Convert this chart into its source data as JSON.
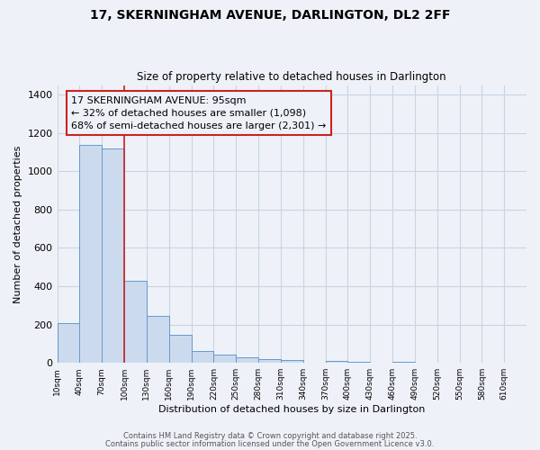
{
  "title_line1": "17, SKERNINGHAM AVENUE, DARLINGTON, DL2 2FF",
  "title_line2": "Size of property relative to detached houses in Darlington",
  "xlabel": "Distribution of detached houses by size in Darlington",
  "ylabel": "Number of detached properties",
  "background_color": "#eef2f8",
  "bar_color": "#ccdaee",
  "bar_edge_color": "#6699cc",
  "annotation_box_color": "#cc2222",
  "annotation_text": "17 SKERNINGHAM AVENUE: 95sqm\n← 32% of detached houses are smaller (1,098)\n68% of semi-detached houses are larger (2,301) →",
  "property_line_x": 100,
  "property_line_color": "#cc2222",
  "categories": [
    "10sqm",
    "40sqm",
    "70sqm",
    "100sqm",
    "130sqm",
    "160sqm",
    "190sqm",
    "220sqm",
    "250sqm",
    "280sqm",
    "310sqm",
    "340sqm",
    "370sqm",
    "400sqm",
    "430sqm",
    "460sqm",
    "490sqm",
    "520sqm",
    "550sqm",
    "580sqm",
    "610sqm"
  ],
  "bin_starts": [
    10,
    40,
    70,
    100,
    130,
    160,
    190,
    220,
    250,
    280,
    310,
    340,
    370,
    400,
    430,
    460,
    490,
    520,
    550,
    580,
    610
  ],
  "bin_width": 30,
  "values": [
    210,
    1140,
    1120,
    430,
    245,
    145,
    60,
    45,
    30,
    20,
    15,
    0,
    10,
    5,
    0,
    5,
    0,
    0,
    0,
    0,
    0
  ],
  "ylim": [
    0,
    1450
  ],
  "yticks": [
    0,
    200,
    400,
    600,
    800,
    1000,
    1200,
    1400
  ],
  "footer_line1": "Contains HM Land Registry data © Crown copyright and database right 2025.",
  "footer_line2": "Contains public sector information licensed under the Open Government Licence v3.0.",
  "grid_color": "#c8d4e4"
}
